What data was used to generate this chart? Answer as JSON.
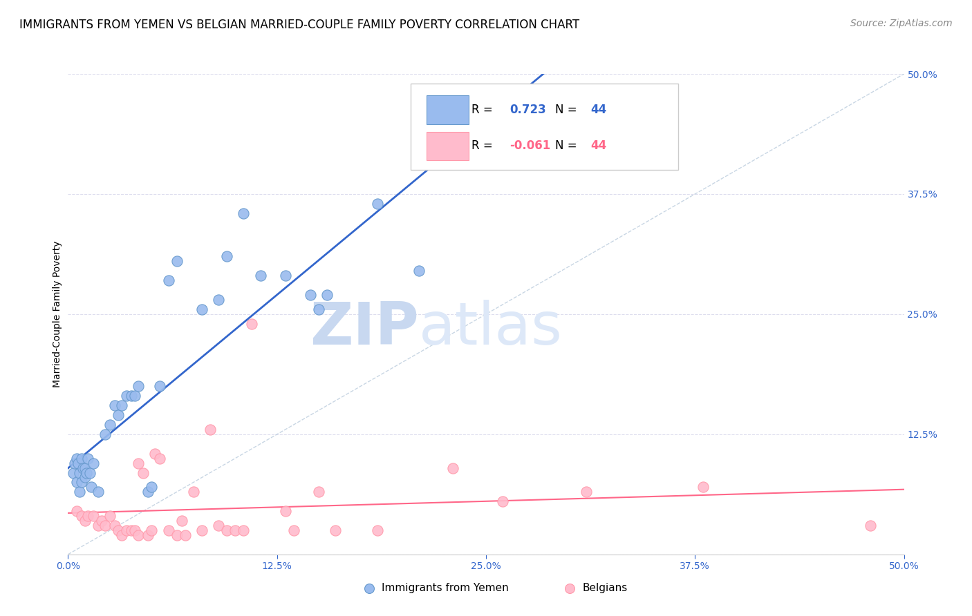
{
  "title": "IMMIGRANTS FROM YEMEN VS BELGIAN MARRIED-COUPLE FAMILY POVERTY CORRELATION CHART",
  "source": "Source: ZipAtlas.com",
  "ylabel": "Married-Couple Family Poverty",
  "xlim": [
    0.0,
    0.5
  ],
  "ylim": [
    0.0,
    0.5
  ],
  "xtick_vals": [
    0.0,
    0.125,
    0.25,
    0.375,
    0.5
  ],
  "xtick_labels": [
    "0.0%",
    "12.5%",
    "25.0%",
    "37.5%",
    "50.0%"
  ],
  "ytick_vals": [
    0.0,
    0.125,
    0.25,
    0.375,
    0.5
  ],
  "ytick_labels_right": [
    "",
    "12.5%",
    "25.0%",
    "37.5%",
    "50.0%"
  ],
  "watermark_zip": "ZIP",
  "watermark_atlas": "atlas",
  "legend_blue_r": "0.723",
  "legend_blue_n": "44",
  "legend_pink_r": "-0.061",
  "legend_pink_n": "44",
  "blue_scatter": [
    [
      0.003,
      0.085
    ],
    [
      0.004,
      0.095
    ],
    [
      0.005,
      0.1
    ],
    [
      0.005,
      0.075
    ],
    [
      0.006,
      0.095
    ],
    [
      0.007,
      0.085
    ],
    [
      0.007,
      0.065
    ],
    [
      0.008,
      0.075
    ],
    [
      0.008,
      0.1
    ],
    [
      0.009,
      0.09
    ],
    [
      0.01,
      0.09
    ],
    [
      0.01,
      0.08
    ],
    [
      0.011,
      0.085
    ],
    [
      0.012,
      0.1
    ],
    [
      0.013,
      0.085
    ],
    [
      0.014,
      0.07
    ],
    [
      0.015,
      0.095
    ],
    [
      0.018,
      0.065
    ],
    [
      0.022,
      0.125
    ],
    [
      0.025,
      0.135
    ],
    [
      0.028,
      0.155
    ],
    [
      0.03,
      0.145
    ],
    [
      0.032,
      0.155
    ],
    [
      0.035,
      0.165
    ],
    [
      0.038,
      0.165
    ],
    [
      0.04,
      0.165
    ],
    [
      0.042,
      0.175
    ],
    [
      0.048,
      0.065
    ],
    [
      0.05,
      0.07
    ],
    [
      0.055,
      0.175
    ],
    [
      0.06,
      0.285
    ],
    [
      0.065,
      0.305
    ],
    [
      0.08,
      0.255
    ],
    [
      0.09,
      0.265
    ],
    [
      0.095,
      0.31
    ],
    [
      0.105,
      0.355
    ],
    [
      0.115,
      0.29
    ],
    [
      0.13,
      0.29
    ],
    [
      0.145,
      0.27
    ],
    [
      0.15,
      0.255
    ],
    [
      0.155,
      0.27
    ],
    [
      0.185,
      0.365
    ],
    [
      0.21,
      0.295
    ],
    [
      0.235,
      0.415
    ]
  ],
  "pink_scatter": [
    [
      0.005,
      0.045
    ],
    [
      0.008,
      0.04
    ],
    [
      0.01,
      0.035
    ],
    [
      0.012,
      0.04
    ],
    [
      0.015,
      0.04
    ],
    [
      0.018,
      0.03
    ],
    [
      0.02,
      0.035
    ],
    [
      0.022,
      0.03
    ],
    [
      0.025,
      0.04
    ],
    [
      0.028,
      0.03
    ],
    [
      0.03,
      0.025
    ],
    [
      0.032,
      0.02
    ],
    [
      0.035,
      0.025
    ],
    [
      0.038,
      0.025
    ],
    [
      0.04,
      0.025
    ],
    [
      0.042,
      0.02
    ],
    [
      0.042,
      0.095
    ],
    [
      0.045,
      0.085
    ],
    [
      0.048,
      0.02
    ],
    [
      0.05,
      0.025
    ],
    [
      0.052,
      0.105
    ],
    [
      0.055,
      0.1
    ],
    [
      0.06,
      0.025
    ],
    [
      0.065,
      0.02
    ],
    [
      0.068,
      0.035
    ],
    [
      0.07,
      0.02
    ],
    [
      0.075,
      0.065
    ],
    [
      0.08,
      0.025
    ],
    [
      0.085,
      0.13
    ],
    [
      0.09,
      0.03
    ],
    [
      0.095,
      0.025
    ],
    [
      0.1,
      0.025
    ],
    [
      0.105,
      0.025
    ],
    [
      0.11,
      0.24
    ],
    [
      0.13,
      0.045
    ],
    [
      0.135,
      0.025
    ],
    [
      0.15,
      0.065
    ],
    [
      0.16,
      0.025
    ],
    [
      0.185,
      0.025
    ],
    [
      0.23,
      0.09
    ],
    [
      0.26,
      0.055
    ],
    [
      0.31,
      0.065
    ],
    [
      0.38,
      0.07
    ],
    [
      0.48,
      0.03
    ]
  ],
  "blue_line_color": "#3366cc",
  "pink_line_color": "#ff6688",
  "scatter_blue_face": "#99bbee",
  "scatter_blue_edge": "#6699cc",
  "scatter_pink_face": "#ffbbcc",
  "scatter_pink_edge": "#ff99aa",
  "diagonal_color": "#bbccdd",
  "grid_color": "#ddddee",
  "background_color": "#ffffff",
  "title_fontsize": 12,
  "source_fontsize": 10,
  "axis_label_fontsize": 10,
  "tick_fontsize": 10,
  "right_tick_color": "#3366cc"
}
